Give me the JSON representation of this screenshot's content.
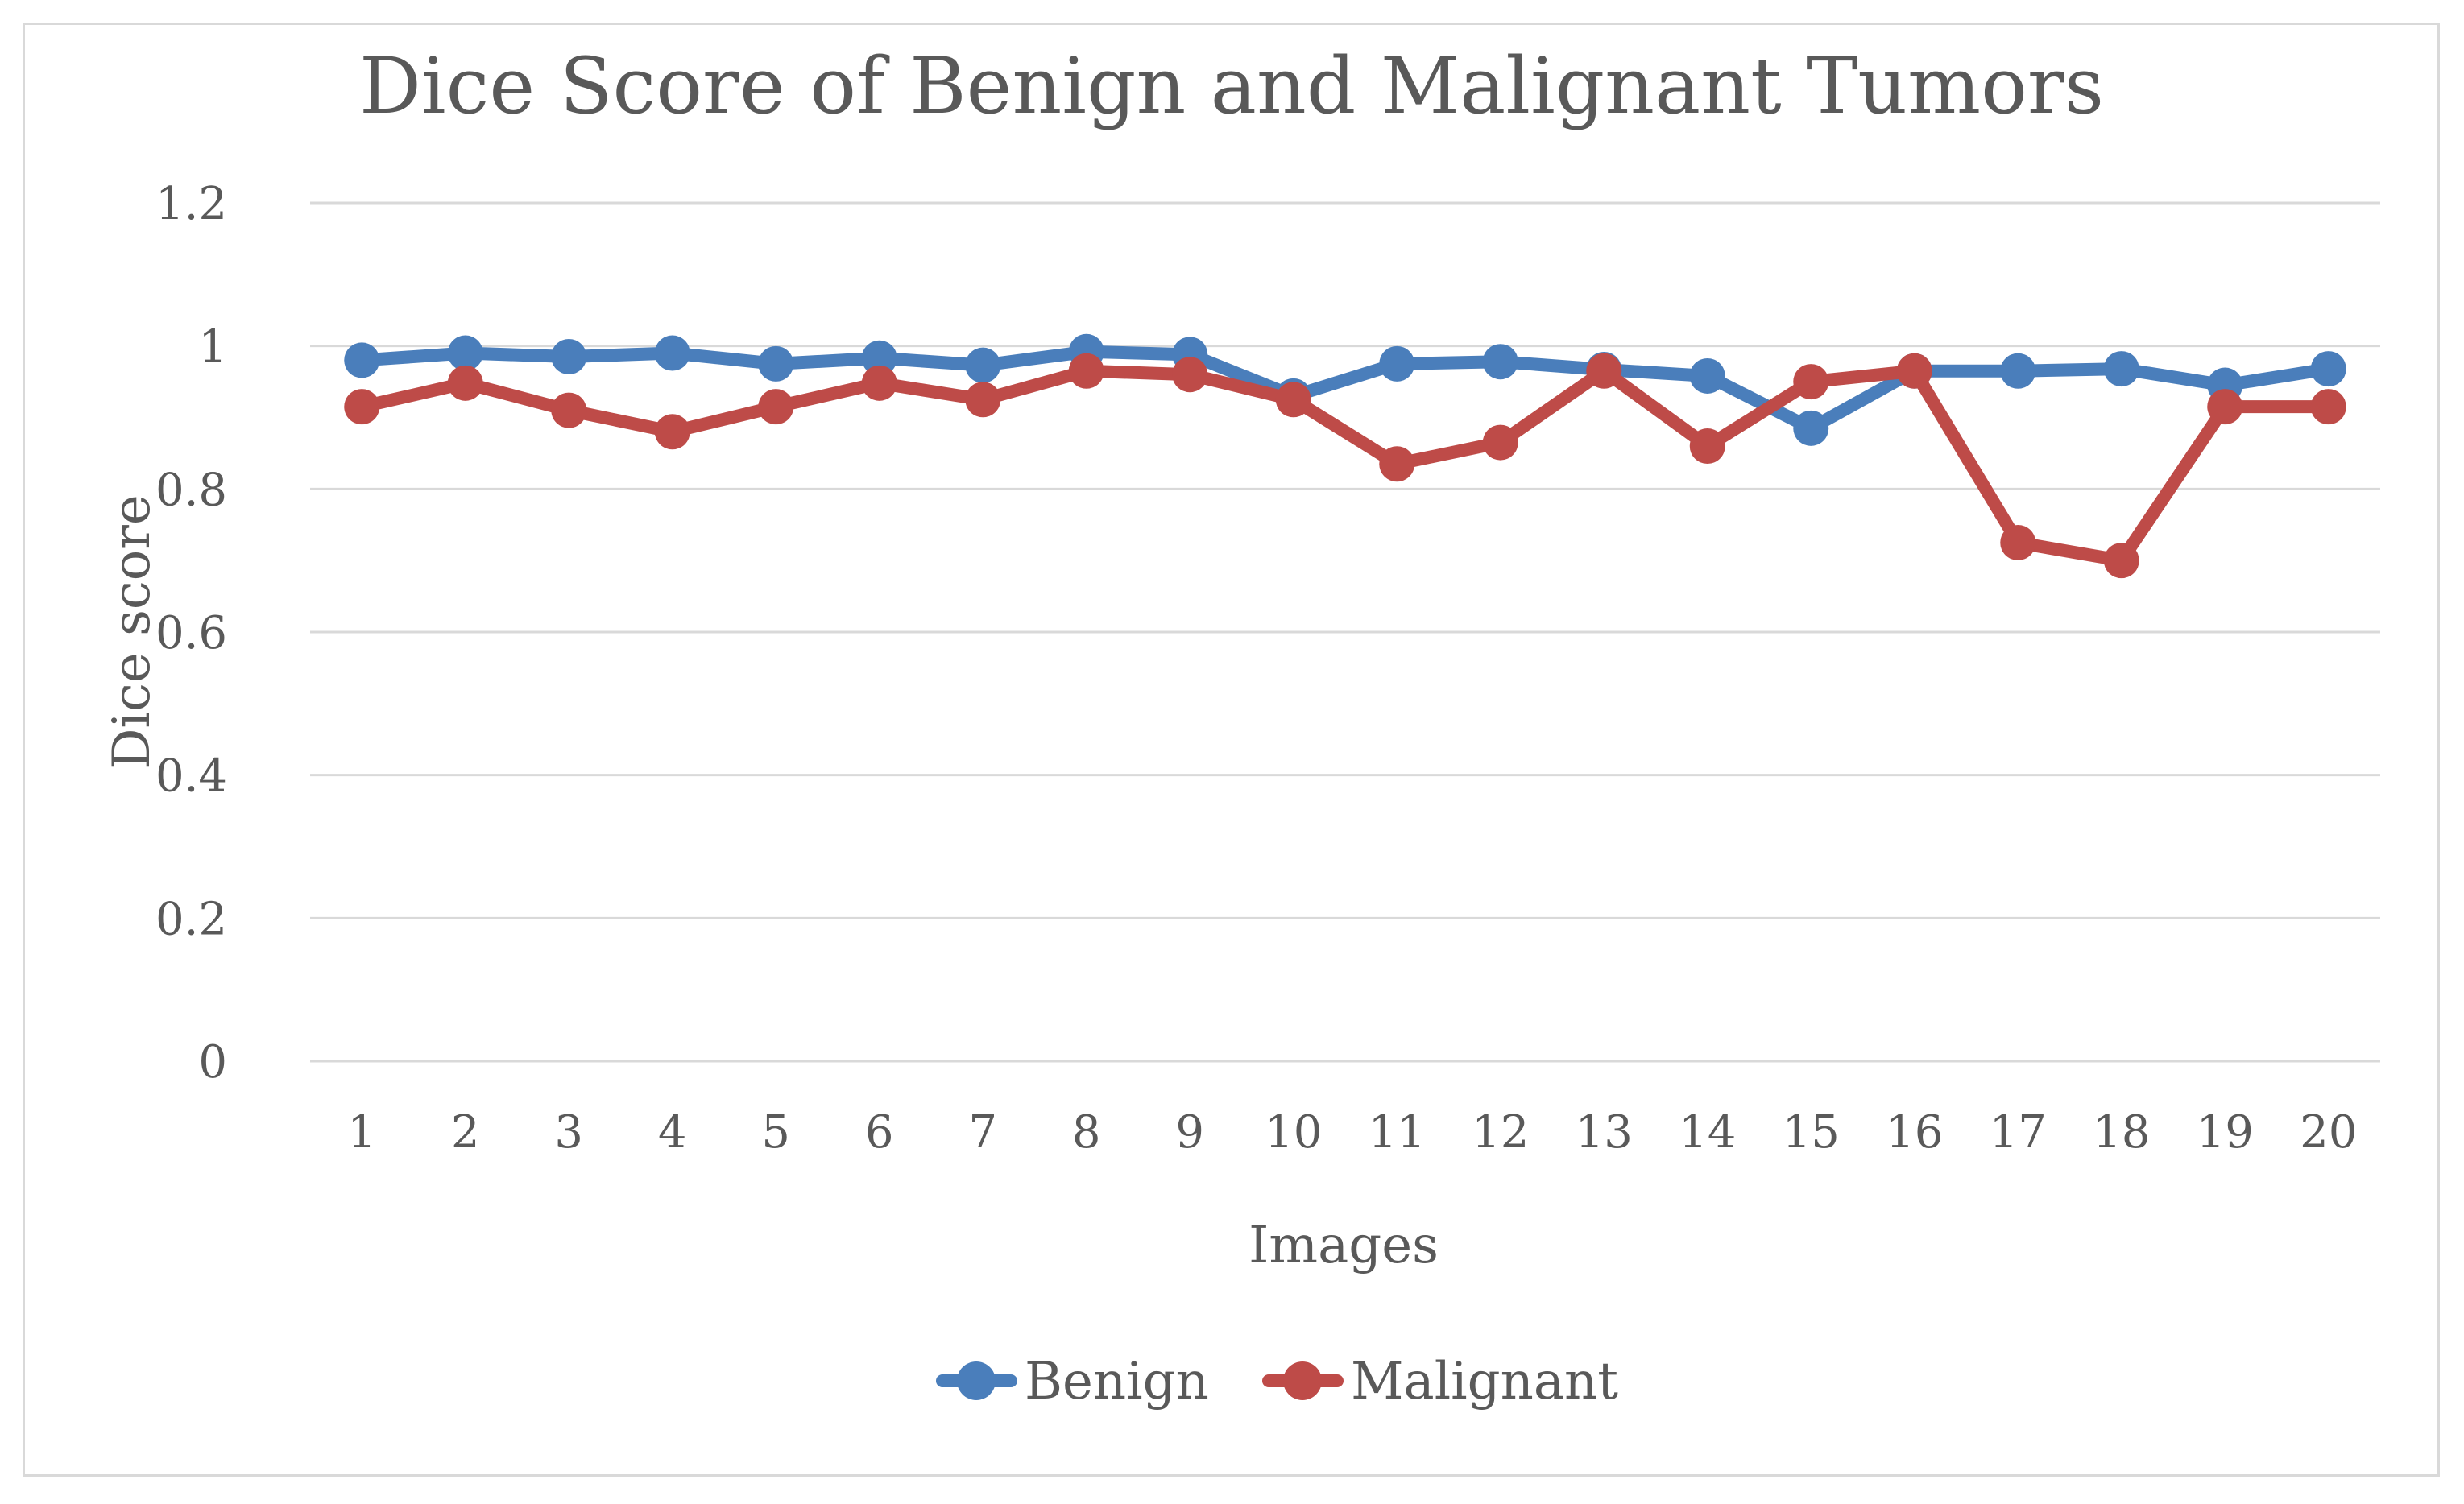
{
  "chart_data": {
    "type": "line",
    "title": "Dice Score of Benign and Malignant Tumors",
    "xlabel": "Images",
    "ylabel": "Dice score",
    "categories": [
      "1",
      "2",
      "3",
      "4",
      "5",
      "6",
      "7",
      "8",
      "9",
      "10",
      "11",
      "12",
      "13",
      "14",
      "15",
      "16",
      "17",
      "18",
      "19",
      "20"
    ],
    "ylim": [
      0,
      1.2
    ],
    "yticks": [
      "0",
      "0.2",
      "0.4",
      "0.6",
      "0.8",
      "1",
      "1.2"
    ],
    "grid": true,
    "legend_position": "bottom",
    "series": [
      {
        "name": "Benign",
        "color": "#4a7ebb",
        "values": [
          0.98,
          0.99,
          0.985,
          0.99,
          0.975,
          0.983,
          0.973,
          0.992,
          0.988,
          0.93,
          0.975,
          0.978,
          0.967,
          0.958,
          0.885,
          0.965,
          0.965,
          0.968,
          0.945,
          0.968
        ]
      },
      {
        "name": "Malignant",
        "color": "#be4b48",
        "values": [
          0.915,
          0.948,
          0.91,
          0.88,
          0.915,
          0.948,
          0.925,
          0.965,
          0.96,
          0.925,
          0.835,
          0.865,
          0.965,
          0.86,
          0.95,
          0.965,
          0.725,
          0.7,
          0.915,
          0.915
        ]
      }
    ]
  }
}
